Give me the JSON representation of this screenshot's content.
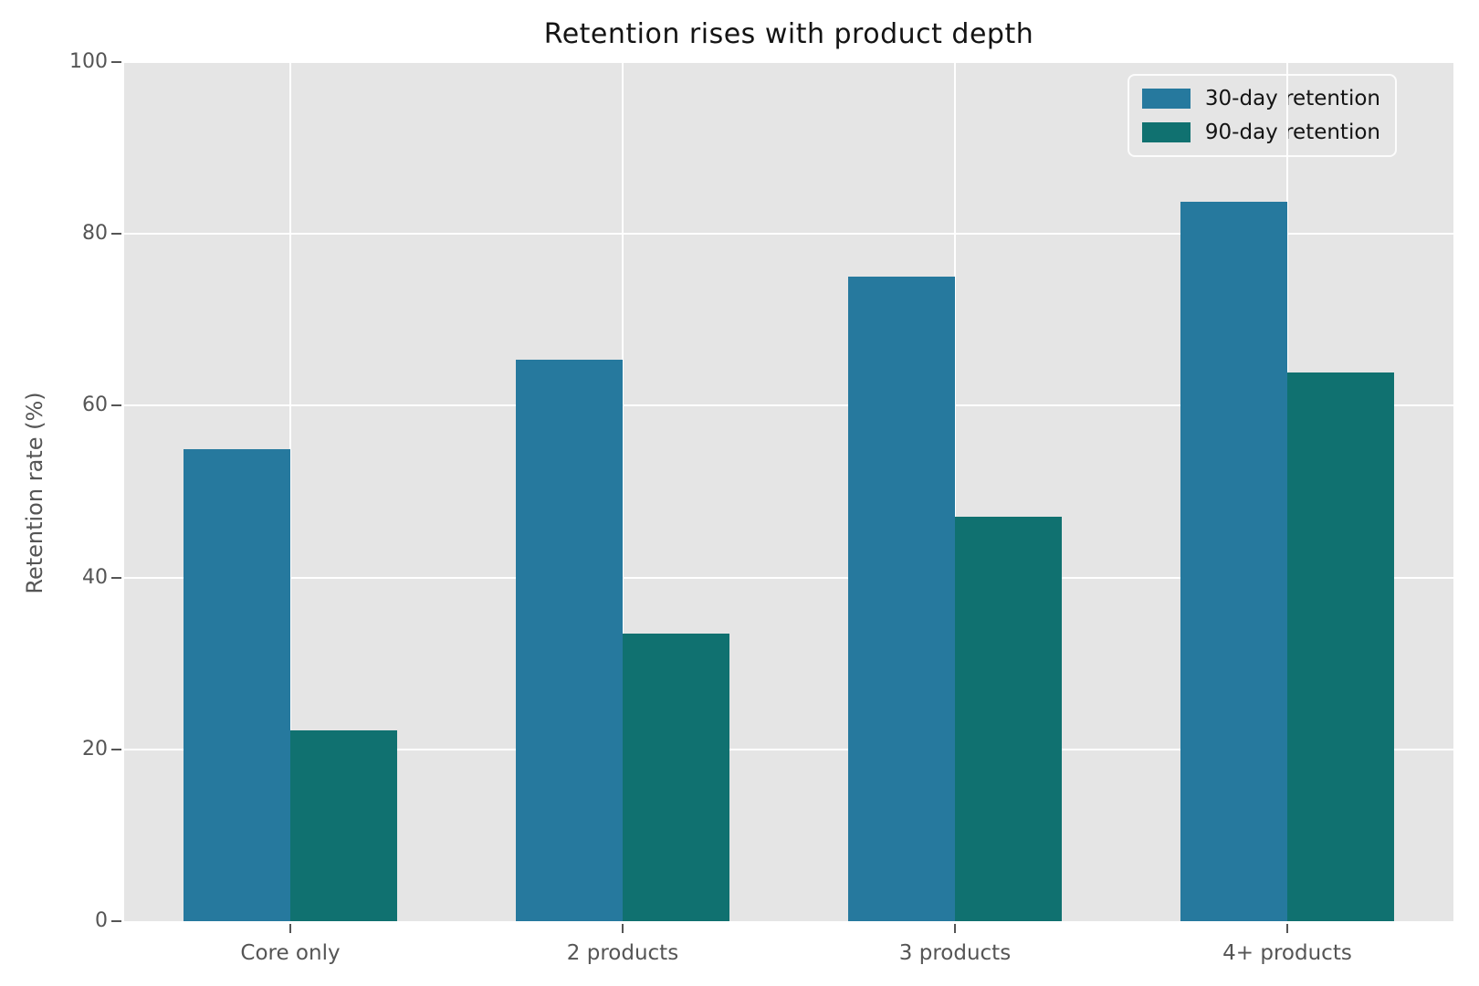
{
  "title": "Retention rises with product depth",
  "chart_data": {
    "type": "bar",
    "title": "Retention rises with product depth",
    "xlabel": "",
    "ylabel": "Retention rate (%)",
    "categories": [
      "Core only",
      "2 products",
      "3 products",
      "4+ products"
    ],
    "series": [
      {
        "name": "30-day retention",
        "color": "#26799e",
        "values": [
          54.9,
          65.4,
          75.0,
          83.7
        ]
      },
      {
        "name": "90-day retention",
        "color": "#107170",
        "values": [
          22.2,
          33.5,
          47.1,
          63.9
        ]
      }
    ],
    "ylim": [
      0,
      100
    ],
    "yticks": [
      0,
      20,
      40,
      60,
      80,
      100
    ],
    "grid": true,
    "legend_position": "upper right",
    "colors": {
      "figure_background": "#ffffff",
      "plot_background": "#e5e5e5",
      "gridline": "#ffffff",
      "tick_label": "#555555",
      "title_text": "#141414"
    }
  }
}
